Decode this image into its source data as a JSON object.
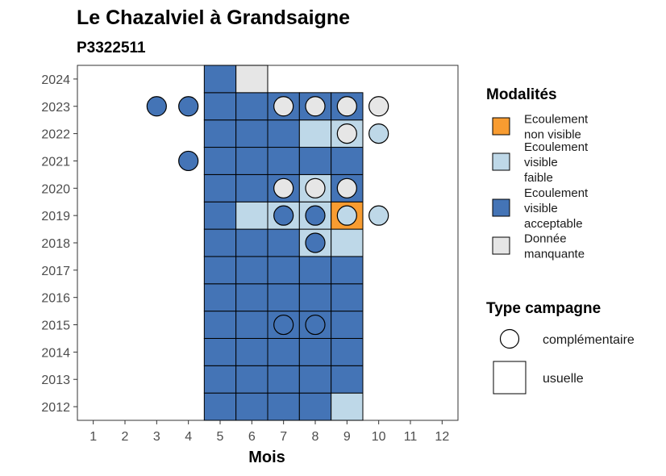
{
  "chart_data": {
    "type": "heatmap",
    "title": "Le Chazalviel à Grandsaigne",
    "subtitle": "P3322511",
    "xlabel": "Mois",
    "ylabel": "",
    "x_ticks": [
      "1",
      "2",
      "3",
      "4",
      "5",
      "6",
      "7",
      "8",
      "9",
      "10",
      "11",
      "12"
    ],
    "y_ticks": [
      "2012",
      "2013",
      "2014",
      "2015",
      "2016",
      "2017",
      "2018",
      "2019",
      "2020",
      "2021",
      "2022",
      "2023",
      "2024"
    ],
    "xlim": [
      0.5,
      12.5
    ],
    "ylim": [
      2011.5,
      2024.5
    ],
    "grid": false,
    "legend_position": "right",
    "colors": {
      "ecoulement_non_visible": "#F89C31",
      "ecoulement_visible_faible": "#BED8E8",
      "ecoulement_visible_acceptable": "#4474B6",
      "donnee_manquante": "#E6E6E6"
    },
    "legend_modalites": {
      "title": "Modalités",
      "items": [
        {
          "key": "ecoulement_non_visible",
          "lines": [
            "Ecoulement",
            "non visible"
          ]
        },
        {
          "key": "ecoulement_visible_faible",
          "lines": [
            "Ecoulement",
            "visible",
            "faible"
          ]
        },
        {
          "key": "ecoulement_visible_acceptable",
          "lines": [
            "Ecoulement",
            "visible",
            "acceptable"
          ]
        },
        {
          "key": "donnee_manquante",
          "lines": [
            "Donnée",
            "manquante"
          ]
        }
      ]
    },
    "legend_type": {
      "title": "Type campagne",
      "items": [
        {
          "shape": "circle",
          "label": "complémentaire"
        },
        {
          "shape": "square",
          "label": "usuelle"
        }
      ]
    },
    "usuelle": [
      {
        "year": 2012,
        "month": 5,
        "m": "ecoulement_visible_acceptable"
      },
      {
        "year": 2012,
        "month": 6,
        "m": "ecoulement_visible_acceptable"
      },
      {
        "year": 2012,
        "month": 7,
        "m": "ecoulement_visible_acceptable"
      },
      {
        "year": 2012,
        "month": 8,
        "m": "ecoulement_visible_acceptable"
      },
      {
        "year": 2012,
        "month": 9,
        "m": "ecoulement_visible_faible"
      },
      {
        "year": 2013,
        "month": 5,
        "m": "ecoulement_visible_acceptable"
      },
      {
        "year": 2013,
        "month": 6,
        "m": "ecoulement_visible_acceptable"
      },
      {
        "year": 2013,
        "month": 7,
        "m": "ecoulement_visible_acceptable"
      },
      {
        "year": 2013,
        "month": 8,
        "m": "ecoulement_visible_acceptable"
      },
      {
        "year": 2013,
        "month": 9,
        "m": "ecoulement_visible_acceptable"
      },
      {
        "year": 2014,
        "month": 5,
        "m": "ecoulement_visible_acceptable"
      },
      {
        "year": 2014,
        "month": 6,
        "m": "ecoulement_visible_acceptable"
      },
      {
        "year": 2014,
        "month": 7,
        "m": "ecoulement_visible_acceptable"
      },
      {
        "year": 2014,
        "month": 8,
        "m": "ecoulement_visible_acceptable"
      },
      {
        "year": 2014,
        "month": 9,
        "m": "ecoulement_visible_acceptable"
      },
      {
        "year": 2015,
        "month": 5,
        "m": "ecoulement_visible_acceptable"
      },
      {
        "year": 2015,
        "month": 6,
        "m": "ecoulement_visible_acceptable"
      },
      {
        "year": 2015,
        "month": 7,
        "m": "ecoulement_visible_acceptable"
      },
      {
        "year": 2015,
        "month": 8,
        "m": "ecoulement_visible_acceptable"
      },
      {
        "year": 2015,
        "month": 9,
        "m": "ecoulement_visible_acceptable"
      },
      {
        "year": 2016,
        "month": 5,
        "m": "ecoulement_visible_acceptable"
      },
      {
        "year": 2016,
        "month": 6,
        "m": "ecoulement_visible_acceptable"
      },
      {
        "year": 2016,
        "month": 7,
        "m": "ecoulement_visible_acceptable"
      },
      {
        "year": 2016,
        "month": 8,
        "m": "ecoulement_visible_acceptable"
      },
      {
        "year": 2016,
        "month": 9,
        "m": "ecoulement_visible_acceptable"
      },
      {
        "year": 2017,
        "month": 5,
        "m": "ecoulement_visible_acceptable"
      },
      {
        "year": 2017,
        "month": 6,
        "m": "ecoulement_visible_acceptable"
      },
      {
        "year": 2017,
        "month": 7,
        "m": "ecoulement_visible_acceptable"
      },
      {
        "year": 2017,
        "month": 8,
        "m": "ecoulement_visible_acceptable"
      },
      {
        "year": 2017,
        "month": 9,
        "m": "ecoulement_visible_acceptable"
      },
      {
        "year": 2018,
        "month": 5,
        "m": "ecoulement_visible_acceptable"
      },
      {
        "year": 2018,
        "month": 6,
        "m": "ecoulement_visible_acceptable"
      },
      {
        "year": 2018,
        "month": 7,
        "m": "ecoulement_visible_acceptable"
      },
      {
        "year": 2018,
        "month": 8,
        "m": "ecoulement_visible_faible"
      },
      {
        "year": 2018,
        "month": 9,
        "m": "ecoulement_visible_faible"
      },
      {
        "year": 2019,
        "month": 5,
        "m": "ecoulement_visible_acceptable"
      },
      {
        "year": 2019,
        "month": 6,
        "m": "ecoulement_visible_faible"
      },
      {
        "year": 2019,
        "month": 7,
        "m": "ecoulement_visible_faible"
      },
      {
        "year": 2019,
        "month": 8,
        "m": "ecoulement_visible_faible"
      },
      {
        "year": 2019,
        "month": 9,
        "m": "ecoulement_non_visible"
      },
      {
        "year": 2020,
        "month": 5,
        "m": "ecoulement_visible_acceptable"
      },
      {
        "year": 2020,
        "month": 6,
        "m": "ecoulement_visible_acceptable"
      },
      {
        "year": 2020,
        "month": 7,
        "m": "ecoulement_visible_acceptable"
      },
      {
        "year": 2020,
        "month": 8,
        "m": "ecoulement_visible_faible"
      },
      {
        "year": 2020,
        "month": 9,
        "m": "ecoulement_visible_acceptable"
      },
      {
        "year": 2021,
        "month": 5,
        "m": "ecoulement_visible_acceptable"
      },
      {
        "year": 2021,
        "month": 6,
        "m": "ecoulement_visible_acceptable"
      },
      {
        "year": 2021,
        "month": 7,
        "m": "ecoulement_visible_acceptable"
      },
      {
        "year": 2021,
        "month": 8,
        "m": "ecoulement_visible_acceptable"
      },
      {
        "year": 2021,
        "month": 9,
        "m": "ecoulement_visible_acceptable"
      },
      {
        "year": 2022,
        "month": 5,
        "m": "ecoulement_visible_acceptable"
      },
      {
        "year": 2022,
        "month": 6,
        "m": "ecoulement_visible_acceptable"
      },
      {
        "year": 2022,
        "month": 7,
        "m": "ecoulement_visible_acceptable"
      },
      {
        "year": 2022,
        "month": 8,
        "m": "ecoulement_visible_faible"
      },
      {
        "year": 2022,
        "month": 9,
        "m": "ecoulement_visible_faible"
      },
      {
        "year": 2023,
        "month": 5,
        "m": "ecoulement_visible_acceptable"
      },
      {
        "year": 2023,
        "month": 6,
        "m": "ecoulement_visible_acceptable"
      },
      {
        "year": 2023,
        "month": 7,
        "m": "ecoulement_visible_acceptable"
      },
      {
        "year": 2023,
        "month": 8,
        "m": "ecoulement_visible_acceptable"
      },
      {
        "year": 2023,
        "month": 9,
        "m": "ecoulement_visible_acceptable"
      },
      {
        "year": 2024,
        "month": 5,
        "m": "ecoulement_visible_acceptable"
      },
      {
        "year": 2024,
        "month": 6,
        "m": "donnee_manquante"
      }
    ],
    "complementaire": [
      {
        "year": 2023,
        "month": 3,
        "m": "ecoulement_visible_acceptable"
      },
      {
        "year": 2023,
        "month": 4,
        "m": "ecoulement_visible_acceptable"
      },
      {
        "year": 2023,
        "month": 7,
        "m": "donnee_manquante"
      },
      {
        "year": 2023,
        "month": 8,
        "m": "donnee_manquante"
      },
      {
        "year": 2023,
        "month": 9,
        "m": "donnee_manquante"
      },
      {
        "year": 2023,
        "month": 10,
        "m": "donnee_manquante"
      },
      {
        "year": 2022,
        "month": 9,
        "m": "donnee_manquante"
      },
      {
        "year": 2022,
        "month": 10,
        "m": "ecoulement_visible_faible"
      },
      {
        "year": 2021,
        "month": 4,
        "m": "ecoulement_visible_acceptable"
      },
      {
        "year": 2020,
        "month": 7,
        "m": "donnee_manquante"
      },
      {
        "year": 2020,
        "month": 8,
        "m": "donnee_manquante"
      },
      {
        "year": 2020,
        "month": 9,
        "m": "donnee_manquante"
      },
      {
        "year": 2019,
        "month": 7,
        "m": "ecoulement_visible_acceptable"
      },
      {
        "year": 2019,
        "month": 8,
        "m": "ecoulement_visible_acceptable"
      },
      {
        "year": 2019,
        "month": 9,
        "m": "ecoulement_visible_faible"
      },
      {
        "year": 2019,
        "month": 10,
        "m": "ecoulement_visible_faible"
      },
      {
        "year": 2018,
        "month": 8,
        "m": "ecoulement_visible_acceptable"
      },
      {
        "year": 2015,
        "month": 7,
        "m": "ecoulement_visible_acceptable"
      },
      {
        "year": 2015,
        "month": 8,
        "m": "ecoulement_visible_acceptable"
      }
    ]
  }
}
